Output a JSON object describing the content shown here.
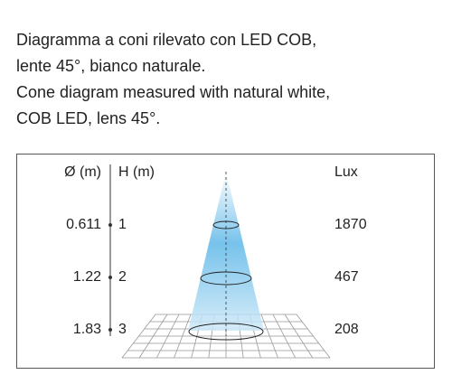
{
  "description": [
    "Diagramma a coni rilevato con LED COB,",
    "lente 45°, bianco naturale.",
    "Cone diagram measured with natural white,",
    "COB LED, lens 45°."
  ],
  "diagram": {
    "headers": {
      "diameter": "Ø (m)",
      "height": "H (m)",
      "lux": "Lux"
    },
    "rows": [
      {
        "diameter": 0.611,
        "height": 1,
        "lux": 1870
      },
      {
        "diameter": 1.22,
        "height": 2,
        "lux": 467
      },
      {
        "diameter": 1.83,
        "height": 3,
        "lux": 208
      }
    ]
  }
}
